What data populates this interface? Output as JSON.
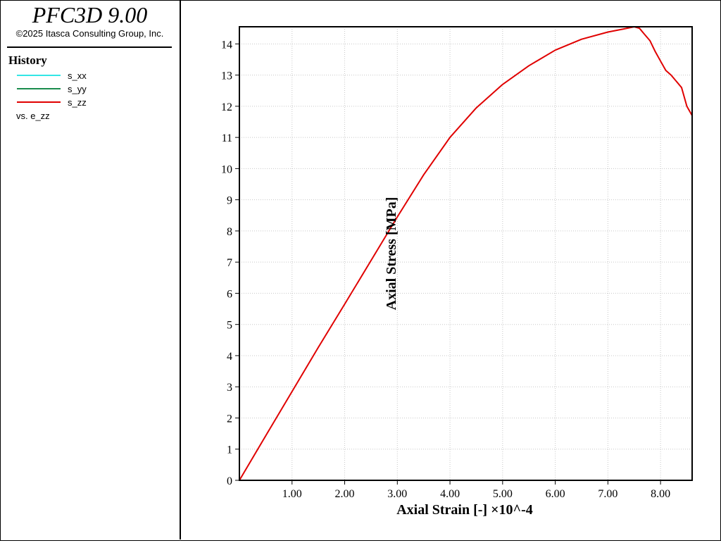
{
  "app": {
    "title": "PFC3D 9.00",
    "copyright": "©2025 Itasca Consulting Group, Inc."
  },
  "legend": {
    "title": "History",
    "items": [
      {
        "label": "s_xx",
        "color": "#33e6e6"
      },
      {
        "label": "s_yy",
        "color": "#1a8c4d"
      },
      {
        "label": "s_zz",
        "color": "#e00000"
      }
    ],
    "vs": "vs. e_zz"
  },
  "chart_data": {
    "type": "line",
    "xlabel": "Axial Strain [-] ×10^-4",
    "ylabel": "Axial Stress [MPa]",
    "xlim": [
      0,
      8.6
    ],
    "ylim": [
      0,
      14.55
    ],
    "x_ticks": [
      1,
      2,
      3,
      4,
      5,
      6,
      7,
      8
    ],
    "x_tick_labels": [
      "1.00",
      "2.00",
      "3.00",
      "4.00",
      "5.00",
      "6.00",
      "7.00",
      "8.00"
    ],
    "y_ticks": [
      0,
      1,
      2,
      3,
      4,
      5,
      6,
      7,
      8,
      9,
      10,
      11,
      12,
      13,
      14
    ],
    "y_tick_labels": [
      "0",
      "1",
      "2",
      "3",
      "4",
      "5",
      "6",
      "7",
      "8",
      "9",
      "10",
      "11",
      "12",
      "13",
      "14"
    ],
    "grid": true,
    "series": [
      {
        "name": "s_xx",
        "color": "#33e6e6",
        "x": [
          0,
          8.6
        ],
        "y": [
          0,
          0
        ]
      },
      {
        "name": "s_yy",
        "color": "#1a8c4d",
        "x": [
          0,
          8.6
        ],
        "y": [
          0,
          0
        ]
      },
      {
        "name": "s_zz",
        "color": "#e00000",
        "x": [
          0,
          0.5,
          1.0,
          1.5,
          2.0,
          2.5,
          3.0,
          3.5,
          4.0,
          4.5,
          5.0,
          5.5,
          6.0,
          6.5,
          7.0,
          7.3,
          7.5,
          7.6,
          7.7,
          7.8,
          7.9,
          8.0,
          8.1,
          8.2,
          8.3,
          8.4,
          8.5,
          8.6
        ],
        "y": [
          0,
          1.43,
          2.85,
          4.27,
          5.65,
          7.05,
          8.45,
          9.8,
          11.0,
          11.95,
          12.7,
          13.3,
          13.8,
          14.15,
          14.38,
          14.48,
          14.55,
          14.5,
          14.3,
          14.1,
          13.75,
          13.45,
          13.15,
          13.0,
          12.8,
          12.6,
          12.0,
          11.7
        ]
      }
    ]
  }
}
